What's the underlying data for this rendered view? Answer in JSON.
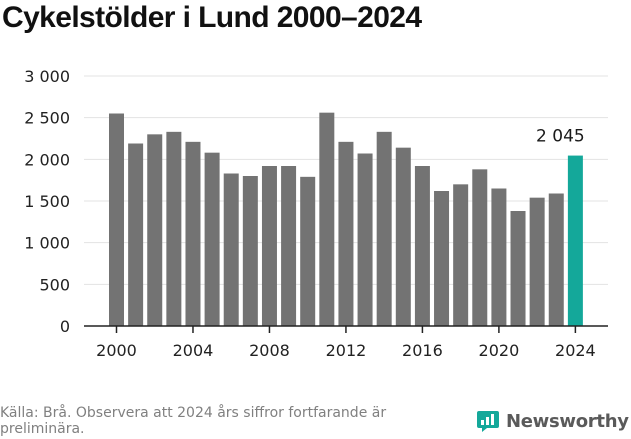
{
  "header": {
    "title": "Cykelstölder i Lund 2000–2024"
  },
  "chart_data": {
    "type": "bar",
    "title": "Cykelstölder i Lund 2000–2024",
    "xlabel": "",
    "ylabel": "",
    "categories": [
      "2000",
      "2001",
      "2002",
      "2003",
      "2004",
      "2005",
      "2006",
      "2007",
      "2008",
      "2009",
      "2010",
      "2011",
      "2012",
      "2013",
      "2014",
      "2015",
      "2016",
      "2017",
      "2018",
      "2019",
      "2020",
      "2021",
      "2022",
      "2023",
      "2024"
    ],
    "values": [
      2550,
      2190,
      2300,
      2330,
      2210,
      2080,
      1830,
      1800,
      1920,
      1920,
      1790,
      2560,
      2210,
      2070,
      2330,
      2140,
      1920,
      1620,
      1700,
      1880,
      1650,
      1380,
      1540,
      1590,
      2045
    ],
    "x_tick_labels": [
      "2000",
      "2004",
      "2008",
      "2012",
      "2016",
      "2020",
      "2024"
    ],
    "y_ticks": [
      0,
      500,
      1000,
      1500,
      2000,
      2500,
      3000
    ],
    "y_tick_labels": [
      "0",
      "500",
      "1 000",
      "1 500",
      "2 000",
      "2 500",
      "3 000"
    ],
    "ylim": [
      0,
      3000
    ],
    "grid": true,
    "highlight": {
      "category": "2024",
      "label": "2 045"
    },
    "colors": {
      "bar": "#737373",
      "highlight": "#14a89a",
      "grid": "#e3e3e3",
      "axis": "#222222"
    }
  },
  "footer": {
    "source": "Källa: Brå. Observera att 2024 års siffror fortfarande är preliminära.",
    "brand": "Newsworthy",
    "brand_icon": "newsworthy-logo-icon",
    "brand_color": "#14a89a"
  }
}
